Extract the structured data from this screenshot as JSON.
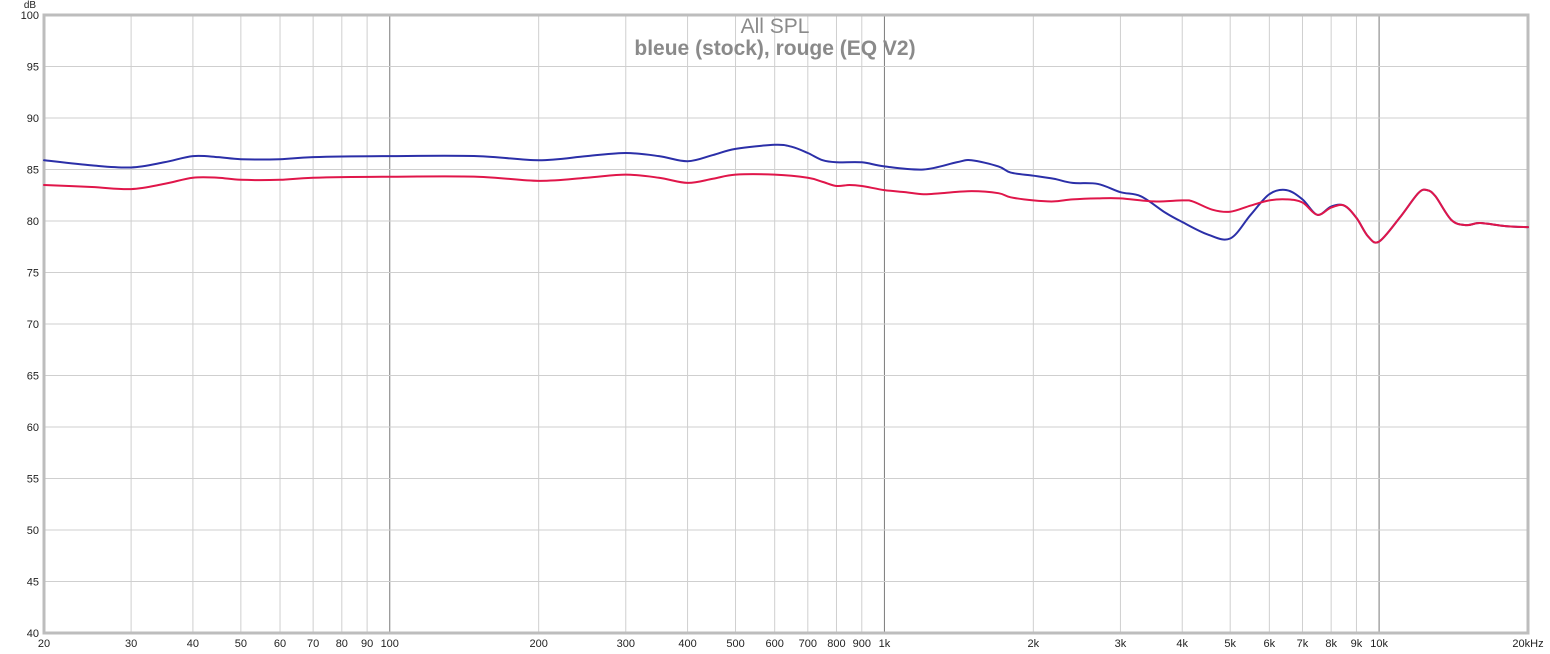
{
  "chart_data": {
    "type": "line",
    "title": "All SPL",
    "subtitle": "bleue (stock), rouge (EQ V2)",
    "ylabel": "dB",
    "xscale": "log",
    "xlim": [
      20,
      20000
    ],
    "ylim": [
      40,
      100
    ],
    "grid": true,
    "y_ticks": [
      40,
      45,
      50,
      55,
      60,
      65,
      70,
      75,
      80,
      85,
      90,
      95,
      100
    ],
    "x_ticks": [
      {
        "value": 20,
        "label": "20"
      },
      {
        "value": 30,
        "label": "30"
      },
      {
        "value": 40,
        "label": "40"
      },
      {
        "value": 50,
        "label": "50"
      },
      {
        "value": 60,
        "label": "60"
      },
      {
        "value": 70,
        "label": "70"
      },
      {
        "value": 80,
        "label": "80"
      },
      {
        "value": 90,
        "label": "90"
      },
      {
        "value": 100,
        "label": "100"
      },
      {
        "value": 200,
        "label": "200"
      },
      {
        "value": 300,
        "label": "300"
      },
      {
        "value": 400,
        "label": "400"
      },
      {
        "value": 500,
        "label": "500"
      },
      {
        "value": 600,
        "label": "600"
      },
      {
        "value": 700,
        "label": "700"
      },
      {
        "value": 800,
        "label": "800"
      },
      {
        "value": 900,
        "label": "900"
      },
      {
        "value": 1000,
        "label": "1k"
      },
      {
        "value": 2000,
        "label": "2k"
      },
      {
        "value": 3000,
        "label": "3k"
      },
      {
        "value": 4000,
        "label": "4k"
      },
      {
        "value": 5000,
        "label": "5k"
      },
      {
        "value": 6000,
        "label": "6k"
      },
      {
        "value": 7000,
        "label": "7k"
      },
      {
        "value": 8000,
        "label": "8k"
      },
      {
        "value": 9000,
        "label": "9k"
      },
      {
        "value": 10000,
        "label": "10k"
      },
      {
        "value": 20000,
        "label": "20kHz"
      }
    ],
    "series": [
      {
        "color": "#2b2fa8",
        "points": [
          [
            20,
            85.9
          ],
          [
            25,
            85.4
          ],
          [
            30,
            85.2
          ],
          [
            35,
            85.7
          ],
          [
            40,
            86.3
          ],
          [
            45,
            86.2
          ],
          [
            50,
            86.0
          ],
          [
            60,
            86.0
          ],
          [
            70,
            86.2
          ],
          [
            100,
            86.3
          ],
          [
            150,
            86.3
          ],
          [
            200,
            85.9
          ],
          [
            250,
            86.3
          ],
          [
            300,
            86.6
          ],
          [
            350,
            86.3
          ],
          [
            400,
            85.8
          ],
          [
            450,
            86.4
          ],
          [
            500,
            87.0
          ],
          [
            600,
            87.4
          ],
          [
            650,
            87.2
          ],
          [
            700,
            86.6
          ],
          [
            750,
            85.9
          ],
          [
            800,
            85.7
          ],
          [
            900,
            85.7
          ],
          [
            1000,
            85.3
          ],
          [
            1200,
            85.0
          ],
          [
            1400,
            85.7
          ],
          [
            1500,
            85.9
          ],
          [
            1700,
            85.3
          ],
          [
            1800,
            84.7
          ],
          [
            2000,
            84.4
          ],
          [
            2200,
            84.1
          ],
          [
            2400,
            83.7
          ],
          [
            2700,
            83.6
          ],
          [
            3000,
            82.8
          ],
          [
            3300,
            82.4
          ],
          [
            3700,
            80.8
          ],
          [
            4000,
            79.9
          ],
          [
            4500,
            78.7
          ],
          [
            5000,
            78.3
          ],
          [
            5500,
            80.6
          ],
          [
            6000,
            82.6
          ],
          [
            6500,
            83.0
          ],
          [
            7000,
            82.1
          ],
          [
            7500,
            80.6
          ],
          [
            8000,
            81.4
          ],
          [
            8500,
            81.5
          ],
          [
            9000,
            80.3
          ],
          [
            9500,
            78.5
          ],
          [
            10000,
            78.0
          ],
          [
            11000,
            80.3
          ],
          [
            12000,
            82.7
          ],
          [
            12500,
            83.0
          ],
          [
            13000,
            82.4
          ],
          [
            14000,
            80.1
          ],
          [
            15000,
            79.6
          ],
          [
            16000,
            79.8
          ],
          [
            18000,
            79.5
          ],
          [
            20000,
            79.4
          ]
        ]
      },
      {
        "color": "#e0164a",
        "points": [
          [
            20,
            83.5
          ],
          [
            25,
            83.3
          ],
          [
            30,
            83.1
          ],
          [
            35,
            83.6
          ],
          [
            40,
            84.2
          ],
          [
            45,
            84.2
          ],
          [
            50,
            84.0
          ],
          [
            60,
            84.0
          ],
          [
            70,
            84.2
          ],
          [
            100,
            84.3
          ],
          [
            150,
            84.3
          ],
          [
            200,
            83.9
          ],
          [
            250,
            84.2
          ],
          [
            300,
            84.5
          ],
          [
            350,
            84.2
          ],
          [
            400,
            83.7
          ],
          [
            450,
            84.1
          ],
          [
            500,
            84.5
          ],
          [
            600,
            84.5
          ],
          [
            700,
            84.2
          ],
          [
            750,
            83.8
          ],
          [
            800,
            83.4
          ],
          [
            850,
            83.5
          ],
          [
            900,
            83.4
          ],
          [
            1000,
            83.0
          ],
          [
            1100,
            82.8
          ],
          [
            1200,
            82.6
          ],
          [
            1300,
            82.7
          ],
          [
            1500,
            82.9
          ],
          [
            1700,
            82.7
          ],
          [
            1800,
            82.3
          ],
          [
            2000,
            82.0
          ],
          [
            2200,
            81.9
          ],
          [
            2400,
            82.1
          ],
          [
            2700,
            82.2
          ],
          [
            3000,
            82.2
          ],
          [
            3500,
            81.9
          ],
          [
            4000,
            82.0
          ],
          [
            4200,
            81.9
          ],
          [
            4600,
            81.1
          ],
          [
            5000,
            80.9
          ],
          [
            5500,
            81.5
          ],
          [
            6000,
            82.0
          ],
          [
            6500,
            82.1
          ],
          [
            7000,
            81.8
          ],
          [
            7500,
            80.6
          ],
          [
            8000,
            81.3
          ],
          [
            8500,
            81.5
          ],
          [
            9000,
            80.3
          ],
          [
            9500,
            78.5
          ],
          [
            10000,
            78.0
          ],
          [
            11000,
            80.3
          ],
          [
            12000,
            82.7
          ],
          [
            12500,
            83.0
          ],
          [
            13000,
            82.4
          ],
          [
            14000,
            80.1
          ],
          [
            15000,
            79.6
          ],
          [
            16000,
            79.8
          ],
          [
            18000,
            79.5
          ],
          [
            20000,
            79.4
          ]
        ]
      }
    ]
  }
}
